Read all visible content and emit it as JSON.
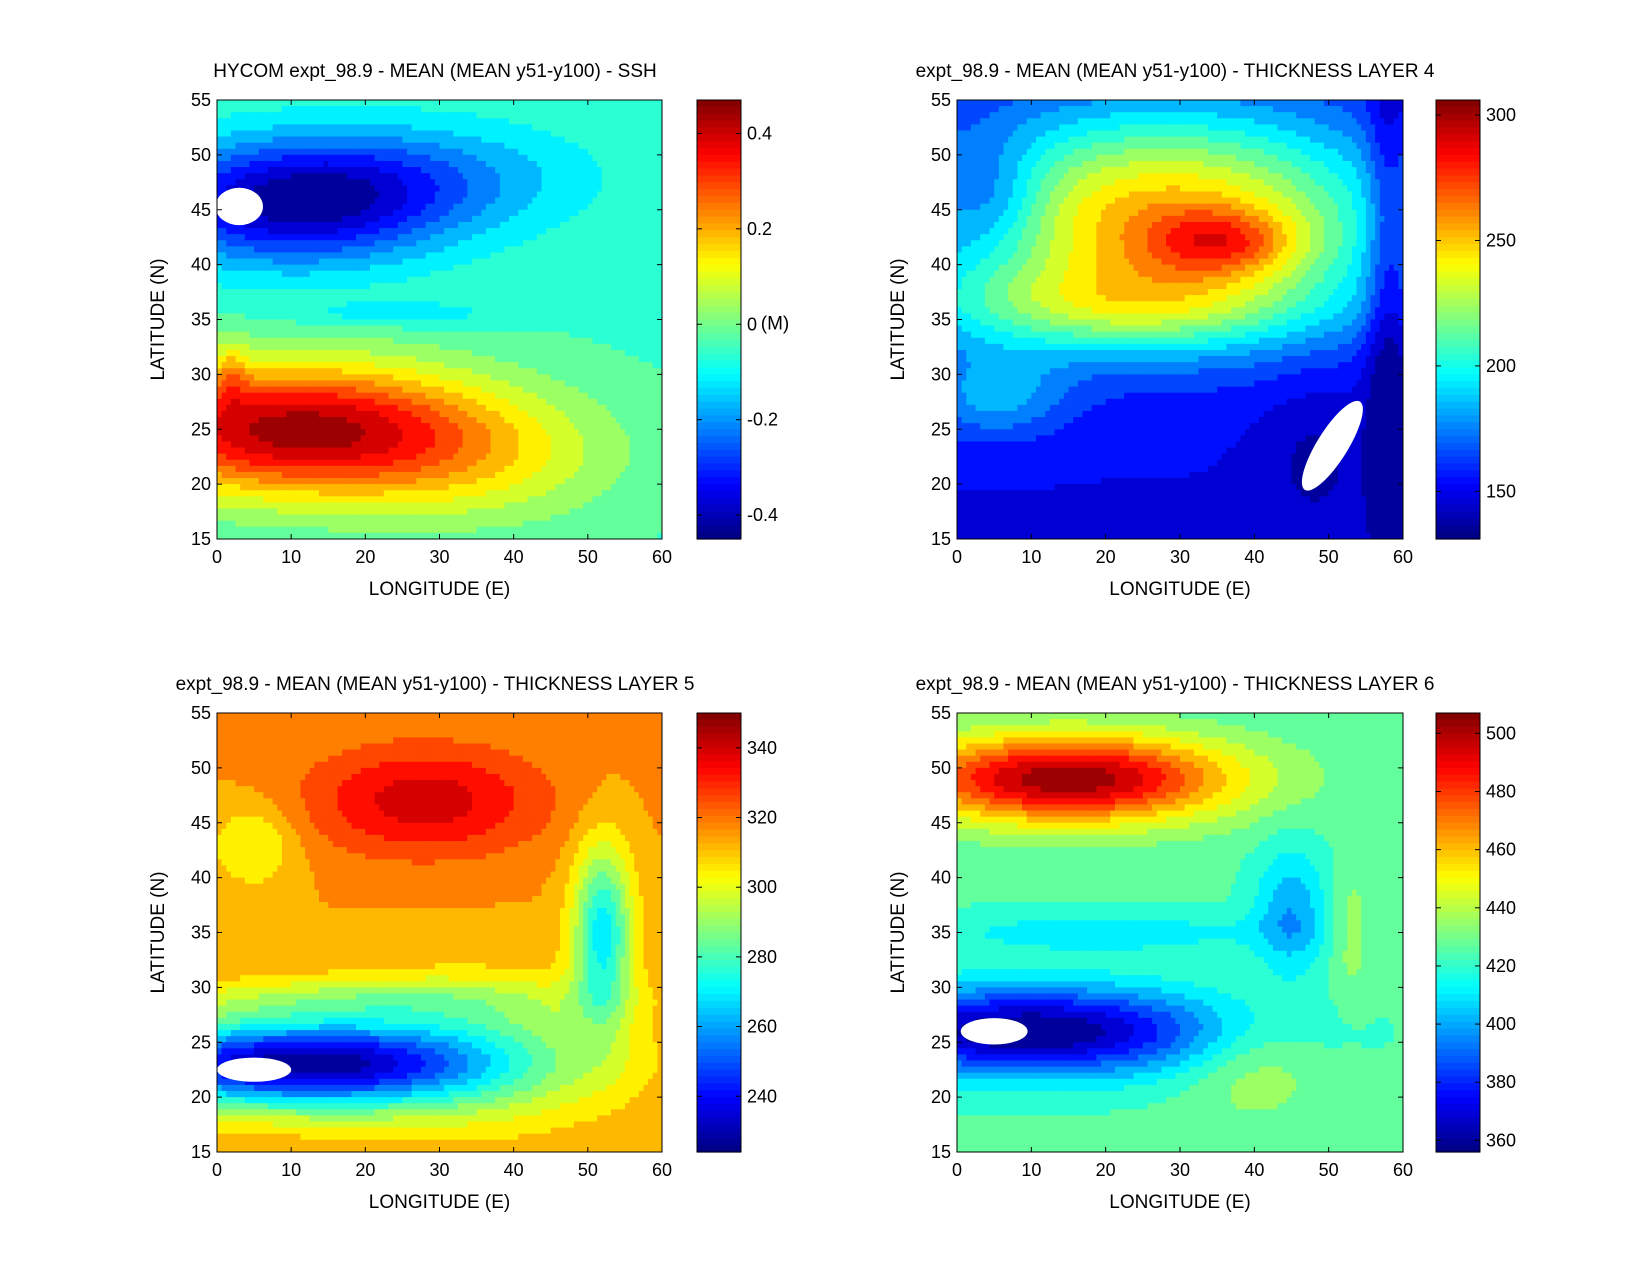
{
  "chart_data": [
    {
      "type": "heatmap",
      "id": "ssh",
      "title": "HYCOM expt_98.9 - MEAN (MEAN y51-y100) - SSH",
      "xlabel": "LONGITUDE (E)",
      "ylabel": "LATITUDE (N)",
      "xlim": [
        0,
        60
      ],
      "ylim": [
        15,
        55
      ],
      "xticks": [
        "0",
        "10",
        "20",
        "30",
        "40",
        "50",
        "60"
      ],
      "yticks": [
        "15",
        "20",
        "25",
        "30",
        "35",
        "40",
        "45",
        "50",
        "55"
      ],
      "colorbar": {
        "clim": [
          -0.45,
          0.47
        ],
        "ticks": [
          "-0.4",
          "-0.2",
          "0",
          "0.2",
          "0.4"
        ],
        "tick_values": [
          -0.4,
          -0.2,
          0,
          0.2,
          0.4
        ],
        "unit": "(M)"
      },
      "background_value": -0.05,
      "features": [
        {
          "lon": 10,
          "lat": 45.5,
          "slon": 20,
          "slat": 5.5,
          "amp": -0.35
        },
        {
          "lon": 28,
          "lat": 48,
          "slon": 22,
          "slat": 5,
          "amp": -0.13
        },
        {
          "lon": 10,
          "lat": 25,
          "slon": 26,
          "slat": 6,
          "amp": 0.48
        },
        {
          "lon": 35,
          "lat": 22,
          "slon": 20,
          "slat": 6,
          "amp": 0.12
        },
        {
          "lon": 25,
          "lat": 35.5,
          "slon": 14,
          "slat": 1.2,
          "amp": -0.08
        },
        {
          "lon": 2,
          "lat": 30,
          "slon": 2,
          "slat": 3,
          "amp": 0.1
        }
      ],
      "white_regions": [
        {
          "lon": 3,
          "lat": 45.3,
          "rx": 3.2,
          "ry": 1.7,
          "rot": 0
        }
      ]
    },
    {
      "type": "heatmap",
      "id": "layer4",
      "title": "expt_98.9 - MEAN (MEAN y51-y100) - THICKNESS LAYER 4",
      "xlabel": "LONGITUDE (E)",
      "ylabel": "LATITUDE (N)",
      "xlim": [
        0,
        60
      ],
      "ylim": [
        15,
        55
      ],
      "xticks": [
        "0",
        "10",
        "20",
        "30",
        "40",
        "50",
        "60"
      ],
      "yticks": [
        "15",
        "20",
        "25",
        "30",
        "35",
        "40",
        "45",
        "50",
        "55"
      ],
      "colorbar": {
        "clim": [
          131,
          306
        ],
        "ticks": [
          "150",
          "200",
          "250",
          "300"
        ],
        "tick_values": [
          150,
          200,
          250,
          300
        ]
      },
      "background_value": 150,
      "features": [
        {
          "lon": 28,
          "lat": 44,
          "slon": 30,
          "slat": 10,
          "amp": 105
        },
        {
          "lon": 20,
          "lat": 36,
          "slon": 28,
          "slat": 4,
          "amp": 40
        },
        {
          "lon": 36,
          "lat": 42,
          "slon": 10,
          "slat": 3,
          "amp": 40
        },
        {
          "lon": 5,
          "lat": 46,
          "slon": 7,
          "slat": 5,
          "amp": -25
        },
        {
          "lon": 48,
          "lat": 22,
          "slon": 7,
          "slat": 7,
          "amp": -12
        },
        {
          "lon": 58,
          "lat": 35,
          "slon": 3,
          "slat": 30,
          "amp": -25
        },
        {
          "lon": 5,
          "lat": 28,
          "slon": 10,
          "slat": 4,
          "amp": 30
        }
      ],
      "white_regions": [
        {
          "lon": 50.5,
          "lat": 23.5,
          "rx": 7,
          "ry": 1.4,
          "rot": -58
        }
      ]
    },
    {
      "type": "heatmap",
      "id": "layer5",
      "title": "expt_98.9 - MEAN (MEAN y51-y100) - THICKNESS LAYER 5",
      "xlabel": "LONGITUDE (E)",
      "ylabel": "LATITUDE (N)",
      "xlim": [
        0,
        60
      ],
      "ylim": [
        15,
        55
      ],
      "xticks": [
        "0",
        "10",
        "20",
        "30",
        "40",
        "50",
        "60"
      ],
      "yticks": [
        "15",
        "20",
        "25",
        "30",
        "35",
        "40",
        "45",
        "50",
        "55"
      ],
      "colorbar": {
        "clim": [
          224,
          350
        ],
        "ticks": [
          "240",
          "260",
          "280",
          "300",
          "320",
          "340"
        ],
        "tick_values": [
          240,
          260,
          280,
          300,
          320,
          340
        ]
      },
      "background_value": 315,
      "features": [
        {
          "lon": 28,
          "lat": 47,
          "slon": 16,
          "slat": 5,
          "amp": 25
        },
        {
          "lon": 10,
          "lat": 23,
          "slon": 26,
          "slat": 4,
          "amp": -85
        },
        {
          "lon": 35,
          "lat": 24,
          "slon": 20,
          "slat": 7,
          "amp": -20
        },
        {
          "lon": 52,
          "lat": 35,
          "slon": 4,
          "slat": 8,
          "amp": -45
        },
        {
          "lon": 5,
          "lat": 43,
          "slon": 6,
          "slat": 4,
          "amp": -15
        },
        {
          "lon": 20,
          "lat": 29,
          "slon": 30,
          "slat": 2,
          "amp": -15
        }
      ],
      "white_regions": [
        {
          "lon": 5,
          "lat": 22.5,
          "rx": 5,
          "ry": 1.1,
          "rot": 0
        }
      ]
    },
    {
      "type": "heatmap",
      "id": "layer6",
      "title": "expt_98.9 - MEAN (MEAN y51-y100) - THICKNESS LAYER 6",
      "xlabel": "LONGITUDE (E)",
      "ylabel": "LATITUDE (N)",
      "xlim": [
        0,
        60
      ],
      "ylim": [
        15,
        55
      ],
      "xticks": [
        "0",
        "10",
        "20",
        "30",
        "40",
        "50",
        "60"
      ],
      "yticks": [
        "15",
        "20",
        "25",
        "30",
        "35",
        "40",
        "45",
        "50",
        "55"
      ],
      "colorbar": {
        "clim": [
          356,
          507
        ],
        "ticks": [
          "360",
          "380",
          "400",
          "420",
          "440",
          "460",
          "480",
          "500"
        ],
        "tick_values": [
          360,
          380,
          400,
          420,
          440,
          460,
          480,
          500
        ]
      },
      "background_value": 425,
      "features": [
        {
          "lon": 15,
          "lat": 49,
          "slon": 22,
          "slat": 4,
          "amp": 80
        },
        {
          "lon": 10,
          "lat": 26,
          "slon": 26,
          "slat": 4,
          "amp": -70
        },
        {
          "lon": 45,
          "lat": 37,
          "slon": 5,
          "slat": 6,
          "amp": -25
        },
        {
          "lon": 40,
          "lat": 23,
          "slon": 9,
          "slat": 5,
          "amp": 15
        },
        {
          "lon": 53,
          "lat": 35,
          "slon": 3,
          "slat": 6,
          "amp": 12
        },
        {
          "lon": 20,
          "lat": 35,
          "slon": 25,
          "slat": 2,
          "amp": -15
        }
      ],
      "white_regions": [
        {
          "lon": 5,
          "lat": 26,
          "rx": 4.5,
          "ry": 1.2,
          "rot": 0
        }
      ]
    }
  ]
}
